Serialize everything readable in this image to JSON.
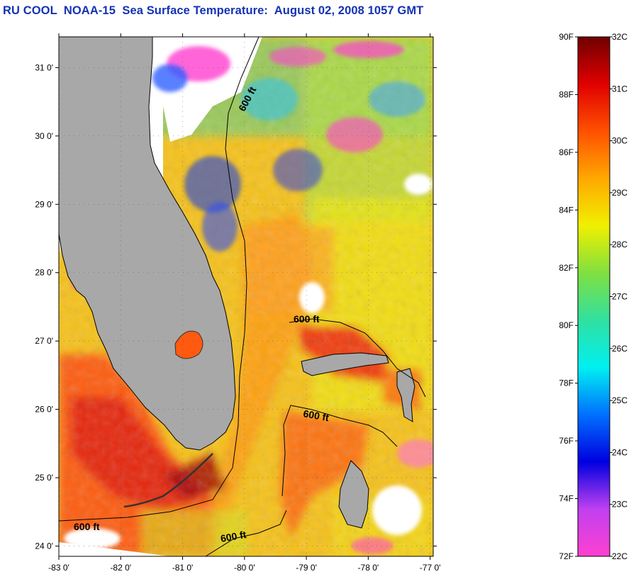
{
  "title": "RU COOL  NOAA-15  Sea Surface Temperature:  August 02, 2008 1057 GMT",
  "map": {
    "lon_range": [
      -83,
      -76.95
    ],
    "lat_range": [
      23.85,
      31.45
    ],
    "y_ticks": [
      "31 0'",
      "30 0'",
      "29 0'",
      "28 0'",
      "27 0'",
      "26 0'",
      "25 0'",
      "24 0'"
    ],
    "y_tick_values": [
      31,
      30,
      29,
      28,
      27,
      26,
      25,
      24
    ],
    "x_ticks": [
      "-83 0'",
      "-82 0'",
      "-81 0'",
      "-80 0'",
      "-79 0'",
      "-78 0'",
      "-77 0'"
    ],
    "x_tick_values": [
      -83,
      -82,
      -81,
      -80,
      -79,
      -78,
      -77
    ],
    "contour_labels": [
      "600 ft",
      "600 ft",
      "600 ft",
      "600 ft",
      "600 ft"
    ],
    "colors": {
      "land": "#a8a8a8",
      "cloud": "#ffffff",
      "contour": "#000000"
    }
  },
  "colorbar": {
    "f_labels": [
      "90F",
      "88F",
      "86F",
      "84F",
      "82F",
      "80F",
      "78F",
      "76F",
      "74F",
      "72F"
    ],
    "c_labels": [
      "32C",
      "31C",
      "30C",
      "29C",
      "28C",
      "27C",
      "26C",
      "25C",
      "24C",
      "23C",
      "22C"
    ],
    "range_c": [
      22,
      32
    ],
    "stops": [
      "#ff40d0",
      "#c040f0",
      "#0000e0",
      "#0070ff",
      "#00f0f0",
      "#30e0a0",
      "#80e040",
      "#f0f000",
      "#ffa800",
      "#ff5000",
      "#e00000",
      "#700000"
    ]
  }
}
